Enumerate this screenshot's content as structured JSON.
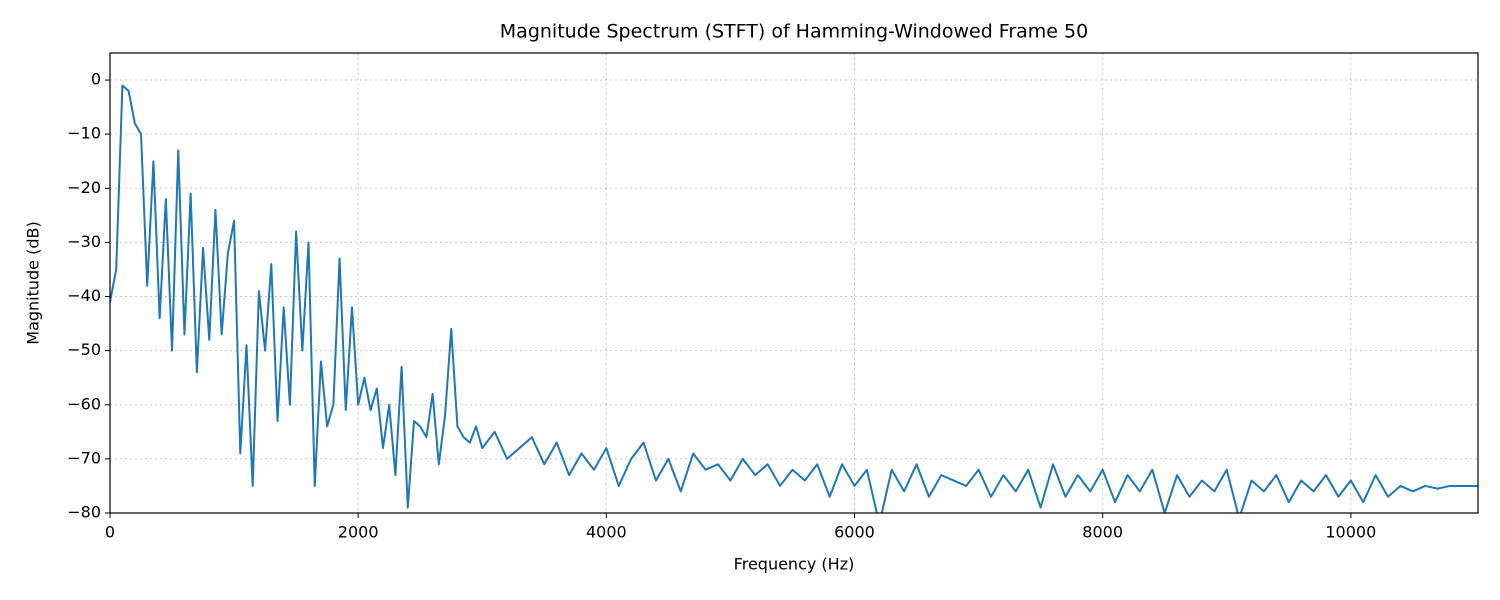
{
  "chart_data": {
    "type": "line",
    "title": "Magnitude Spectrum (STFT) of Hamming-Windowed Frame 50",
    "xlabel": "Frequency (Hz)",
    "ylabel": "Magnitude (dB)",
    "x": [
      0,
      50,
      100,
      150,
      200,
      250,
      300,
      350,
      400,
      450,
      500,
      550,
      600,
      650,
      700,
      750,
      800,
      850,
      900,
      950,
      1000,
      1050,
      1100,
      1150,
      1200,
      1250,
      1300,
      1350,
      1400,
      1450,
      1500,
      1550,
      1600,
      1650,
      1700,
      1750,
      1800,
      1850,
      1900,
      1950,
      2000,
      2050,
      2100,
      2150,
      2200,
      2250,
      2300,
      2350,
      2400,
      2450,
      2500,
      2550,
      2600,
      2650,
      2700,
      2750,
      2800,
      2850,
      2900,
      2950,
      3000,
      3100,
      3200,
      3300,
      3400,
      3500,
      3600,
      3700,
      3800,
      3900,
      4000,
      4100,
      4200,
      4300,
      4400,
      4500,
      4600,
      4700,
      4800,
      4900,
      5000,
      5100,
      5200,
      5300,
      5400,
      5500,
      5600,
      5700,
      5800,
      5900,
      6000,
      6100,
      6200,
      6300,
      6400,
      6500,
      6600,
      6700,
      6800,
      6900,
      7000,
      7100,
      7200,
      7300,
      7400,
      7500,
      7600,
      7700,
      7800,
      7900,
      8000,
      8100,
      8200,
      8300,
      8400,
      8500,
      8600,
      8700,
      8800,
      8900,
      9000,
      9100,
      9200,
      9300,
      9400,
      9500,
      9600,
      9700,
      9800,
      9900,
      10000,
      10100,
      10200,
      10300,
      10400,
      10500,
      10600,
      10700,
      10800,
      10900,
      11000,
      11025
    ],
    "series": [
      {
        "name": "Magnitude",
        "color": "#1f77b4",
        "values": [
          -41,
          -35,
          -1,
          -2,
          -8,
          -10,
          -38,
          -15,
          -44,
          -22,
          -50,
          -13,
          -47,
          -21,
          -54,
          -31,
          -48,
          -24,
          -47,
          -32,
          -26,
          -69,
          -49,
          -75,
          -39,
          -50,
          -34,
          -63,
          -42,
          -60,
          -28,
          -50,
          -30,
          -75,
          -52,
          -64,
          -60,
          -33,
          -61,
          -42,
          -60,
          -55,
          -61,
          -57,
          -68,
          -60,
          -73,
          -53,
          -79,
          -63,
          -64,
          -66,
          -58,
          -71,
          -62,
          -46,
          -64,
          -66,
          -67,
          -64,
          -68,
          -65,
          -70,
          -68,
          -66,
          -71,
          -67,
          -73,
          -69,
          -72,
          -68,
          -75,
          -70,
          -67,
          -74,
          -70,
          -76,
          -69,
          -72,
          -71,
          -74,
          -70,
          -73,
          -71,
          -75,
          -72,
          -74,
          -71,
          -77,
          -71,
          -75,
          -72,
          -82,
          -72,
          -76,
          -71,
          -77,
          -73,
          -74,
          -75,
          -72,
          -77,
          -73,
          -76,
          -72,
          -79,
          -71,
          -77,
          -73,
          -76,
          -72,
          -78,
          -73,
          -76,
          -72,
          -80,
          -73,
          -77,
          -74,
          -76,
          -72,
          -81,
          -74,
          -76,
          -73,
          -78,
          -74,
          -76,
          -73,
          -77,
          -74,
          -78,
          -73,
          -77,
          -75,
          -76,
          -75,
          -75.5,
          -75,
          -75,
          -75,
          -75
        ]
      }
    ],
    "xlim": [
      0,
      11025
    ],
    "ylim": [
      -80,
      5
    ],
    "xticks": [
      0,
      2000,
      4000,
      6000,
      8000,
      10000
    ],
    "yticks": [
      {
        "value": -80,
        "label": "−80"
      },
      {
        "value": -70,
        "label": "−70"
      },
      {
        "value": -60,
        "label": "−60"
      },
      {
        "value": -50,
        "label": "−50"
      },
      {
        "value": -40,
        "label": "−40"
      },
      {
        "value": -30,
        "label": "−30"
      },
      {
        "value": -20,
        "label": "−20"
      },
      {
        "value": -10,
        "label": "−10"
      },
      0
    ],
    "grid": true
  }
}
